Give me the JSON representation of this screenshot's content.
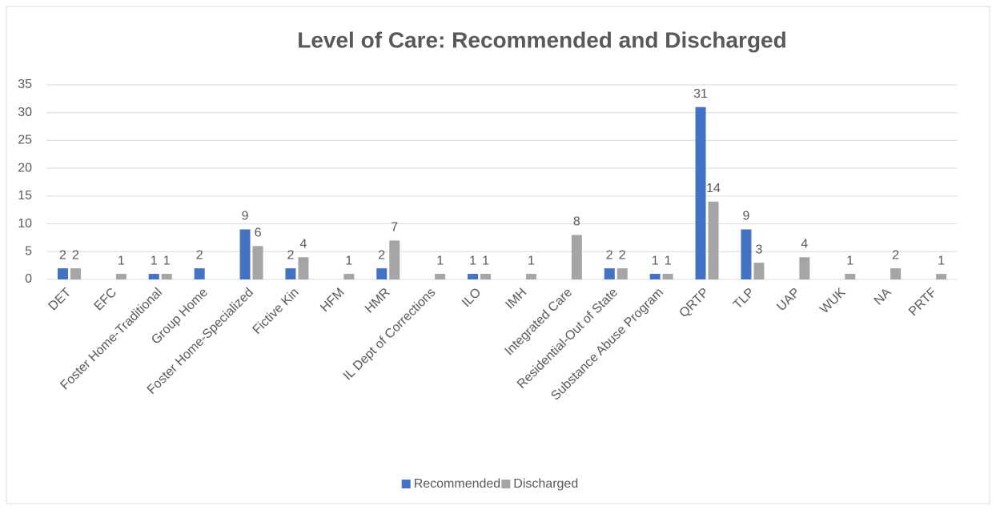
{
  "chart_data": {
    "type": "bar",
    "title": "Level of Care: Recommended and Discharged",
    "categories": [
      "DET",
      "EFC",
      "Foster Home-Traditional",
      "Group Home",
      "Foster Home-Specialized",
      "Fictive Kin",
      "HFM",
      "HMR",
      "IL Dept of Corrections",
      "ILO",
      "IMH",
      "Integrated Care",
      "Residential-Out of State",
      "Substance Abuse Program",
      "QRTP",
      "TLP",
      "UAP",
      "WUK",
      "NA",
      "PRTF"
    ],
    "series": [
      {
        "name": "Recommended",
        "color": "#4472c4",
        "values": [
          2,
          0,
          1,
          2,
          9,
          2,
          0,
          2,
          0,
          1,
          0,
          0,
          2,
          1,
          31,
          9,
          0,
          0,
          0,
          0
        ]
      },
      {
        "name": "Discharged",
        "color": "#a5a5a5",
        "values": [
          2,
          1,
          1,
          0,
          6,
          4,
          1,
          7,
          1,
          1,
          1,
          8,
          2,
          1,
          14,
          3,
          4,
          1,
          2,
          1
        ]
      }
    ],
    "ylim": [
      0,
      35
    ],
    "yticks": [
      0,
      5,
      10,
      15,
      20,
      25,
      30,
      35
    ],
    "grid": true,
    "legend": "bottom"
  }
}
